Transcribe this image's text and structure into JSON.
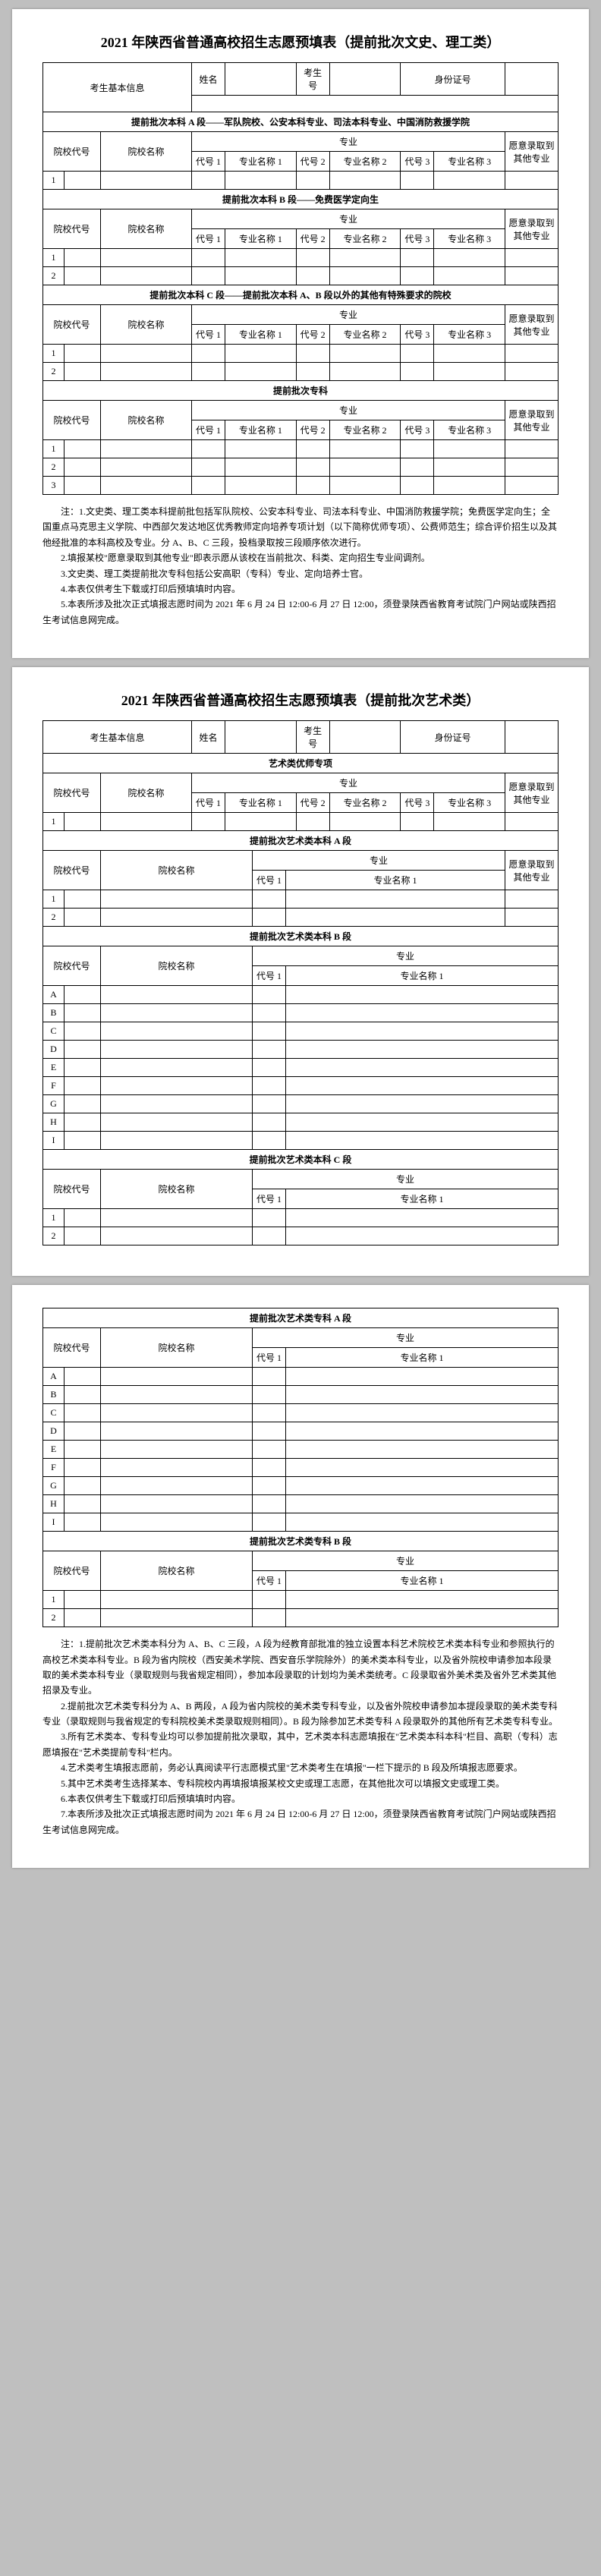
{
  "page1": {
    "title": "2021 年陕西省普通高校招生志愿预填表（提前批次文史、理工类）",
    "basicInfoLabel": "考生基本信息",
    "nameLabel": "姓名",
    "examNoLabel": "考生号",
    "idLabel": "身份证号",
    "sectionA": "提前批次本科 A 段——军队院校、公安本科专业、司法本科专业、中国消防救援学院",
    "sectionB": "提前批次本科 B 段——免费医学定向生",
    "sectionC": "提前批次本科 C 段——提前批次本科 A、B 段以外的其他有特殊要求的院校",
    "sectionZK": "提前批次专科",
    "yxdh": "院校代号",
    "yxmc": "院校名称",
    "zy": "专业",
    "dh": "代号",
    "zymc": "专业名称",
    "dh1": "代号 1",
    "zymc1": "专业名称 1",
    "dh2": "代号 2",
    "zymc2": "专业名称 2",
    "dh3": "代号 3",
    "zymc3": "专业名称 3",
    "yflqd": "愿意录取到其他专业",
    "row1": "1",
    "row2": "2",
    "row3": "3",
    "notes": [
      "注：1.文史类、理工类本科提前批包括军队院校、公安本科专业、司法本科专业、中国消防救援学院；免费医学定向生；全国重点马克思主义学院、中西部欠发达地区优秀教师定向培养专项计划（以下简称优师专项）、公费师范生；综合评价招生以及其他经批准的本科高校及专业。分 A、B、C 三段，投档录取按三段顺序依次进行。",
      "2.填报某校\"愿意录取到其他专业\"即表示愿从该校在当前批次、科类、定向招生专业间调剂。",
      "3.文史类、理工类提前批次专科包括公安高职（专科）专业、定向培养士官。",
      "4.本表仅供考生下载或打印后预填填时内容。",
      "5.本表所涉及批次正式填报志愿时间为 2021 年 6 月 24 日 12:00-6 月 27 日 12:00，须登录陕西省教育考试院门户网站或陕西招生考试信息网完成。"
    ]
  },
  "page2": {
    "title": "2021 年陕西省普通高校招生志愿预填表（提前批次艺术类）",
    "basicInfoLabel": "考生基本信息",
    "nameLabel": "姓名",
    "examNoLabel": "考生号",
    "idLabel": "身份证号",
    "sectionYS": "艺术类优师专项",
    "sectionA": "提前批次艺术类本科 A 段",
    "sectionB": "提前批次艺术类本科 B 段",
    "sectionC": "提前批次艺术类本科 C 段",
    "yxdh": "院校代号",
    "yxmc": "院校名称",
    "zy": "专业",
    "dh1": "代号 1",
    "zymc1": "专业名称 1",
    "dh2": "代号 2",
    "zymc2": "专业名称 2",
    "dh3": "代号 3",
    "zymc3": "专业名称 3",
    "yflqd": "愿意录取到其他专业",
    "row1": "1",
    "row2": "2",
    "rowsABCDEFGHI": [
      "A",
      "B",
      "C",
      "D",
      "E",
      "F",
      "G",
      "H",
      "I"
    ]
  },
  "page3": {
    "sectionA": "提前批次艺术类专科 A 段",
    "sectionB": "提前批次艺术类专科 B 段",
    "yxdh": "院校代号",
    "yxmc": "院校名称",
    "zy": "专业",
    "dh1": "代号 1",
    "zymc1": "专业名称 1",
    "rowsABCDEFGHI": [
      "A",
      "B",
      "C",
      "D",
      "E",
      "F",
      "G",
      "H",
      "I"
    ],
    "row1": "1",
    "row2": "2",
    "notes": [
      "注：1.提前批次艺术类本科分为 A、B、C 三段，A 段为经教育部批准的独立设置本科艺术院校艺术类本科专业和参照执行的高校艺术类本科专业。B 段为省内院校（西安美术学院、西安音乐学院除外）的美术类本科专业，以及省外院校申请参加本段录取的美术类本科专业（录取规则与我省规定相同），参加本段录取的计划均为美术类统考。C 段录取省外美术类及省外艺术类其他招录及专业。",
      "2.提前批次艺术类专科分为 A、B 两段，A 段为省内院校的美术类专科专业，以及省外院校申请参加本提段录取的美术类专科专业（录取规则与我省规定的专科院校美术类录取规则相同）。B 段为除参加艺术类专科 A 段录取外的其他所有艺术类专科专业。",
      "3.所有艺术类本、专科专业均可以参加提前批次录取，其中，艺术类本科志愿填报在\"艺术类本科本科\"栏目、高职（专科）志愿填报在\"艺术类提前专科\"栏内。",
      "4.艺术类考生填报志愿前，务必认真阅读平行志愿模式里\"艺术类考生在填报\"一栏下提示的 B 段及所填报志愿要求。",
      "5.其中艺术类考生选择某本、专科院校内再填报填报某校文史或理工志愿，在其他批次可以填报文史或理工类。",
      "6.本表仅供考生下载或打印后预填填时内容。",
      "7.本表所涉及批次正式填报志愿时间为 2021 年 6 月 24 日 12:00-6 月 27 日 12:00，须登录陕西省教育考试院门户网站或陕西招生考试信息网完成。"
    ]
  }
}
